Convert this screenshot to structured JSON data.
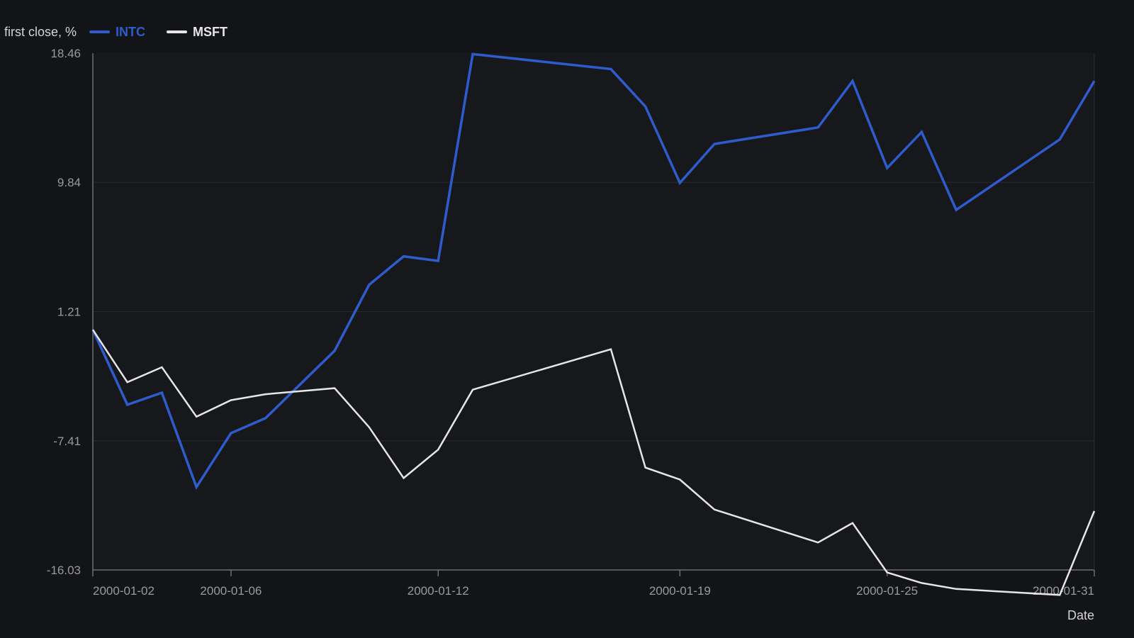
{
  "colors": {
    "background": "#131417",
    "plot_background": "#17181c",
    "grid": "#2a2b30",
    "axis": "#6e6e6e",
    "tick_label": "#9a9a9a"
  },
  "chart_data": {
    "type": "line",
    "legend_title": "first close, %",
    "legend_position": "top-left",
    "xlabel": "Date",
    "ylabel": "",
    "grid": true,
    "x": [
      "2000-01-02",
      "2000-01-03",
      "2000-01-04",
      "2000-01-05",
      "2000-01-06",
      "2000-01-07",
      "2000-01-09",
      "2000-01-10",
      "2000-01-11",
      "2000-01-12",
      "2000-01-13",
      "2000-01-17",
      "2000-01-18",
      "2000-01-19",
      "2000-01-20",
      "2000-01-23",
      "2000-01-24",
      "2000-01-25",
      "2000-01-26",
      "2000-01-27",
      "2000-01-30",
      "2000-01-31"
    ],
    "series": [
      {
        "name": "INTC",
        "color": "#2f5ccc",
        "values": [
          0.0,
          -5.0,
          -4.2,
          -10.5,
          -6.9,
          -5.9,
          -1.4,
          3.0,
          4.9,
          4.6,
          18.4,
          17.4,
          14.9,
          9.8,
          12.4,
          13.5,
          16.6,
          10.8,
          13.2,
          8.0,
          12.7,
          16.6
        ]
      },
      {
        "name": "MSFT",
        "color": "#e6e6e6",
        "values": [
          0.0,
          -3.5,
          -2.5,
          -5.8,
          -4.7,
          -4.3,
          -3.9,
          -6.5,
          -9.9,
          -8.0,
          -4.0,
          -1.3,
          -9.2,
          -10.0,
          -12.0,
          -14.2,
          -12.9,
          -16.2,
          -16.9,
          -17.3,
          -17.7,
          -12.1
        ]
      }
    ],
    "ylim": [
      -16.03,
      18.46
    ],
    "y_ticks": [
      "18.46",
      "9.84",
      "1.21",
      "-7.41",
      "-16.03"
    ],
    "x_tick_labels": [
      {
        "date": "2000-01-02",
        "label": "2000-01-02"
      },
      {
        "date": "2000-01-06",
        "label": "2000-01-06"
      },
      {
        "date": "2000-01-12",
        "label": "2000-01-12"
      },
      {
        "date": "2000-01-19",
        "label": "2000-01-19"
      },
      {
        "date": "2000-01-25",
        "label": "2000-01-25"
      },
      {
        "date": "2000-01-31",
        "label": "2000-01-31"
      }
    ]
  }
}
